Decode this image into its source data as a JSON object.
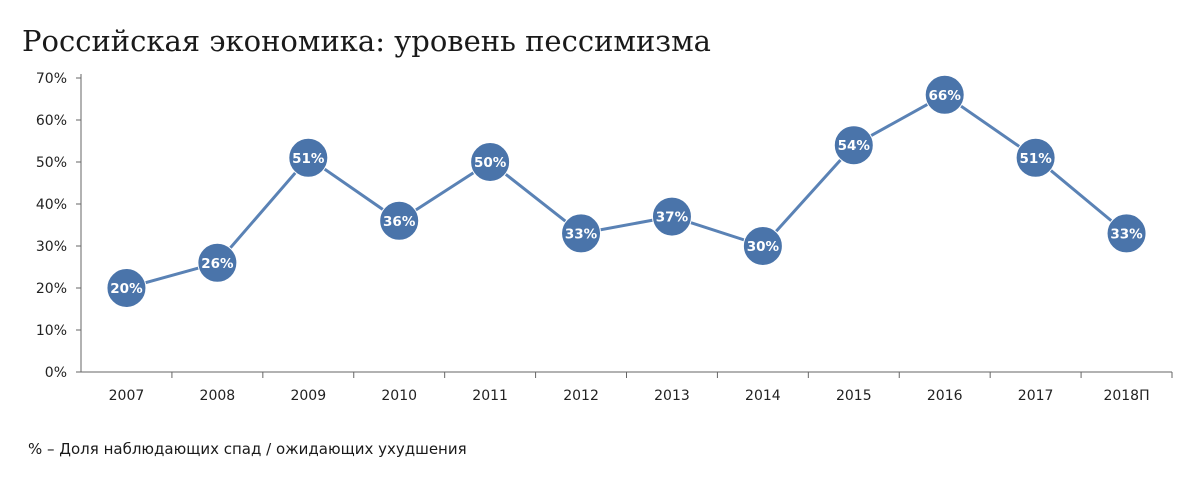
{
  "chart_data": {
    "type": "line",
    "title": "Российская экономика: уровень пессимизма",
    "categories": [
      "2007",
      "2008",
      "2009",
      "2010",
      "2011",
      "2012",
      "2013",
      "2014",
      "2015",
      "2016",
      "2017",
      "2018П"
    ],
    "series": [
      {
        "values": [
          20,
          26,
          51,
          36,
          50,
          33,
          37,
          30,
          54,
          66,
          51,
          33
        ],
        "labels": [
          "20%",
          "26%",
          "51%",
          "36%",
          "50%",
          "33%",
          "37%",
          "30%",
          "54%",
          "66%",
          "51%",
          "33%"
        ]
      }
    ],
    "y_ticks": [
      "0%",
      "10%",
      "20%",
      "30%",
      "40%",
      "50%",
      "60%",
      "70%"
    ],
    "ylim": [
      0,
      70
    ],
    "xlabel": "",
    "ylabel": "",
    "grid": false,
    "line_color": "#5a82b5",
    "marker_color": "#4a74aa",
    "note": "% – Доля наблюдающих спад / ожидающих ухудшения"
  }
}
